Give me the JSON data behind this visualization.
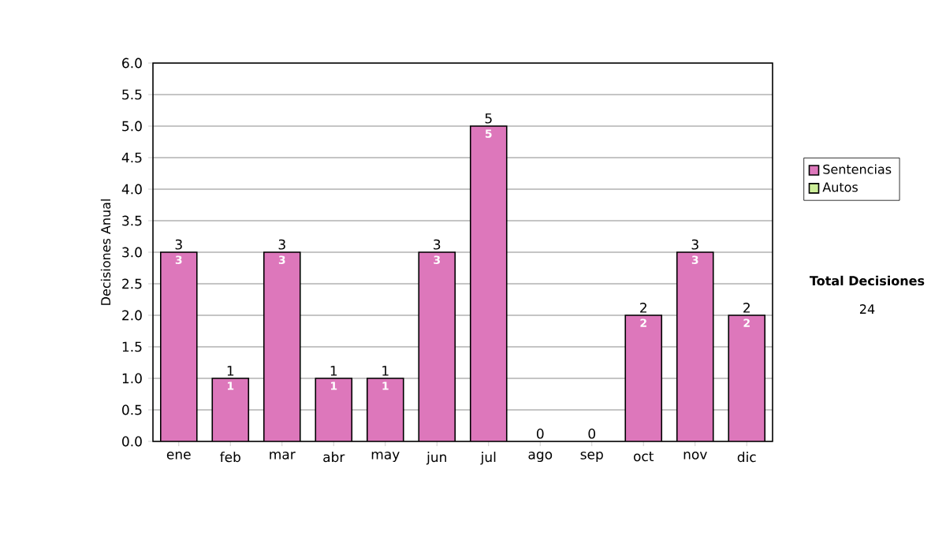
{
  "chart_data": {
    "type": "bar",
    "stacked": true,
    "ylabel": "Decisiones Anual",
    "categories": [
      "ene",
      "feb",
      "mar",
      "abr",
      "may",
      "jun",
      "jul",
      "ago",
      "sep",
      "oct",
      "nov",
      "dic"
    ],
    "series": [
      {
        "name": "Sentencias",
        "color": "#dd77bb",
        "values": [
          3,
          1,
          3,
          1,
          1,
          3,
          5,
          0,
          0,
          2,
          3,
          2
        ],
        "value_labels": [
          "3",
          "1",
          "3",
          "1",
          "1",
          "3",
          "5",
          null,
          null,
          "2",
          "3",
          "2"
        ]
      },
      {
        "name": "Autos",
        "color": "#ccee99",
        "values": [
          0,
          0,
          0,
          0,
          0,
          0,
          0,
          0,
          0,
          0,
          0,
          0
        ]
      }
    ],
    "totals": [
      "3",
      "1",
      "3",
      "1",
      "1",
      "3",
      "5",
      "0",
      "0",
      "2",
      "3",
      "2"
    ],
    "ylim": [
      0,
      6
    ],
    "yticks": [
      {
        "value": 0,
        "label": "0.0"
      },
      {
        "value": 0.5,
        "label": "0.5"
      },
      {
        "value": 1,
        "label": "1.0"
      },
      {
        "value": 1.5,
        "label": "1.5"
      },
      {
        "value": 2,
        "label": "2.0"
      },
      {
        "value": 2.5,
        "label": "2.5"
      },
      {
        "value": 3,
        "label": "3.0"
      },
      {
        "value": 3.5,
        "label": "3.5"
      },
      {
        "value": 4,
        "label": "4.0"
      },
      {
        "value": 4.5,
        "label": "4.5"
      },
      {
        "value": 5,
        "label": "5.0"
      },
      {
        "value": 5.5,
        "label": "5.5"
      },
      {
        "value": 6,
        "label": "6.0"
      }
    ],
    "grid": "y",
    "legend": "right",
    "annotations": [
      "Total Decisiones",
      "24"
    ]
  }
}
